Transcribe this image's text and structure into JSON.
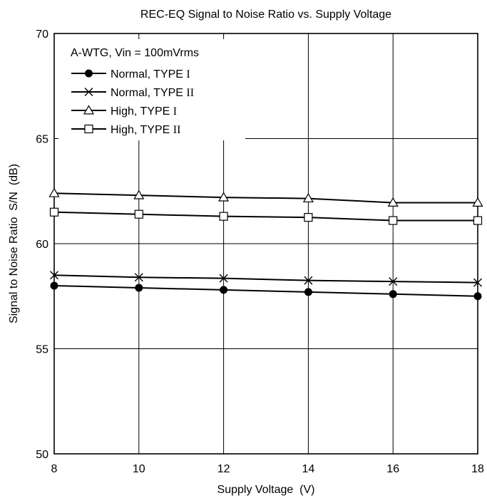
{
  "chart_data": {
    "type": "line",
    "title": "REC-EQ Signal to Noise Ratio vs. Supply Voltage",
    "xlabel": "Supply Voltage  (V)",
    "ylabel": "Signal to Noise Ratio  S/N  (dB)",
    "xlim": [
      8,
      18
    ],
    "ylim": [
      50,
      70
    ],
    "xticks": [
      8,
      10,
      12,
      14,
      16,
      18
    ],
    "yticks": [
      50,
      55,
      60,
      65,
      70
    ],
    "grid": true,
    "legend_position": "top-left",
    "legend_title": "A-WTG, Vin = 100mVrms",
    "x": [
      8,
      10,
      12,
      14,
      16,
      18
    ],
    "series": [
      {
        "name": "Normal, TYPE I",
        "name_main": "Normal, TYPE ",
        "name_roman": "I",
        "marker": "filled-circle",
        "values": [
          58.0,
          57.9,
          57.8,
          57.7,
          57.6,
          57.5
        ]
      },
      {
        "name": "Normal, TYPE II",
        "name_main": "Normal, TYPE ",
        "name_roman": "II",
        "marker": "x",
        "values": [
          58.5,
          58.4,
          58.35,
          58.25,
          58.2,
          58.15
        ]
      },
      {
        "name": "High, TYPE I",
        "name_main": "High, TYPE ",
        "name_roman": "I",
        "marker": "triangle",
        "values": [
          62.4,
          62.3,
          62.2,
          62.15,
          61.95,
          61.95
        ]
      },
      {
        "name": "High, TYPE II",
        "name_main": "High, TYPE ",
        "name_roman": "II",
        "marker": "square",
        "values": [
          61.5,
          61.4,
          61.3,
          61.25,
          61.1,
          61.1
        ]
      }
    ]
  }
}
